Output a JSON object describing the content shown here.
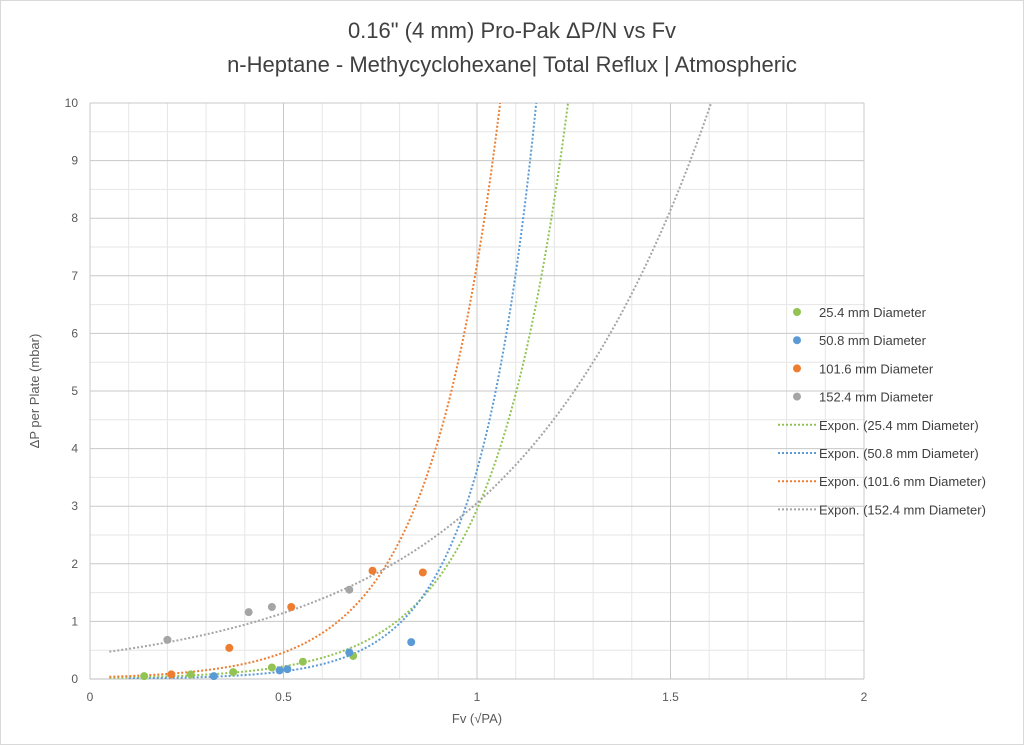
{
  "chart_data": {
    "type": "scatter",
    "title": "0.16\" (4 mm) Pro-Pak ΔP/N vs Fv",
    "subtitle": "n-Heptane - Methycyclohexane| Total Reflux | Atmospheric",
    "xlabel": "Fv (√PA)",
    "ylabel": "ΔP per Plate (mbar)",
    "xlim": [
      0,
      2
    ],
    "ylim": [
      0,
      10
    ],
    "xticks": [
      "0",
      "0.5",
      "1",
      "1.5",
      "2"
    ],
    "yticks": [
      "0",
      "1",
      "2",
      "3",
      "4",
      "5",
      "6",
      "7",
      "8",
      "9",
      "10"
    ],
    "grid": true,
    "minor_grid": true,
    "legend_position": "right",
    "series": [
      {
        "name": "25.4 mm Diameter",
        "color": "#92c353",
        "points": [
          [
            0.14,
            0.05
          ],
          [
            0.26,
            0.08
          ],
          [
            0.37,
            0.12
          ],
          [
            0.47,
            0.2
          ],
          [
            0.55,
            0.3
          ],
          [
            0.68,
            0.4
          ]
        ]
      },
      {
        "name": "50.8 mm Diameter",
        "color": "#5b9bd5",
        "points": [
          [
            0.32,
            0.05
          ],
          [
            0.49,
            0.15
          ],
          [
            0.51,
            0.17
          ],
          [
            0.67,
            0.46
          ],
          [
            0.83,
            0.64
          ]
        ]
      },
      {
        "name": "101.6 mm Diameter",
        "color": "#ed7d31",
        "points": [
          [
            0.21,
            0.08
          ],
          [
            0.36,
            0.54
          ],
          [
            0.52,
            1.25
          ],
          [
            0.73,
            1.88
          ],
          [
            0.86,
            1.85
          ]
        ]
      },
      {
        "name": "152.4 mm Diameter",
        "color": "#a5a5a5",
        "points": [
          [
            0.2,
            0.68
          ],
          [
            0.41,
            1.16
          ],
          [
            0.47,
            1.25
          ],
          [
            0.67,
            1.55
          ]
        ]
      }
    ],
    "trendlines": [
      {
        "name": "Expon. (25.4 mm Diameter)",
        "color": "#92c353",
        "type": "exponential",
        "a": 0.01624,
        "b": 5.2,
        "x_range": [
          0.05,
          1.34
        ]
      },
      {
        "name": "Expon. (50.8 mm Diameter)",
        "color": "#5b9bd5",
        "type": "exponential",
        "a": 0.00484,
        "b": 6.62,
        "x_range": [
          0.1,
          1.26
        ]
      },
      {
        "name": "Expon. (101.6 mm Diameter)",
        "color": "#ed7d31",
        "type": "exponential",
        "a": 0.02941,
        "b": 5.5,
        "x_range": [
          0.05,
          1.09
        ]
      },
      {
        "name": "Expon. (152.4 mm Diameter)",
        "color": "#a5a5a5",
        "type": "exponential",
        "a": 0.4304,
        "b": 1.96,
        "x_range": [
          0.05,
          1.64
        ]
      }
    ]
  }
}
